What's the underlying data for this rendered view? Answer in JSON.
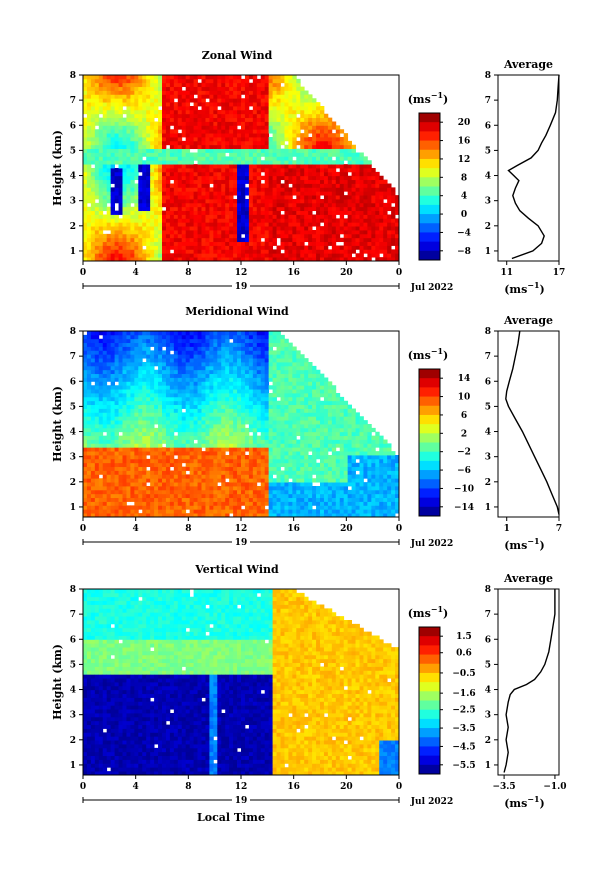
{
  "chart_data": [
    {
      "type": "heatmap",
      "title": "Zonal Wind",
      "ylabel": "Height (km)",
      "xticks": [
        "0",
        "4",
        "8",
        "12",
        "16",
        "20",
        "0"
      ],
      "xlim": [
        0,
        24
      ],
      "ylim": [
        0.6,
        8
      ],
      "yticks": [
        "1",
        "2",
        "3",
        "4",
        "5",
        "6",
        "7",
        "8"
      ],
      "date_label": "19",
      "month_label": "Jul 2022",
      "colorbar": {
        "unit": "(ms",
        "unit_sup": "−1",
        "unit_close": ")",
        "ticks": [
          "20",
          "16",
          "12",
          "8",
          "4",
          "0",
          "−4",
          "−8"
        ],
        "min": -10,
        "max": 22
      },
      "profile": {
        "title": "Average",
        "xticks": [
          "11",
          "17"
        ],
        "xlim": [
          10,
          17
        ],
        "xlabel": "(ms",
        "xlabel_sup": "−1",
        "xlabel_close": ")",
        "heights": [
          0.7,
          1.0,
          1.3,
          1.6,
          2.0,
          2.3,
          2.6,
          2.9,
          3.2,
          3.5,
          3.8,
          4.0,
          4.2,
          4.4,
          4.7,
          5.0,
          5.3,
          5.6,
          6.0,
          6.5,
          7.0,
          7.5,
          8.0
        ],
        "values": [
          11.6,
          14.0,
          15.0,
          15.3,
          14.6,
          13.5,
          12.5,
          12.0,
          11.7,
          12.0,
          12.4,
          11.8,
          11.2,
          12.2,
          13.8,
          14.6,
          15.0,
          15.5,
          16.0,
          16.6,
          16.8,
          16.9,
          17.0
        ]
      }
    },
    {
      "type": "heatmap",
      "title": "Meridional Wind",
      "ylabel": "Height (km)",
      "xticks": [
        "0",
        "4",
        "8",
        "12",
        "16",
        "20",
        "0"
      ],
      "xlim": [
        0,
        24
      ],
      "ylim": [
        0.6,
        8
      ],
      "yticks": [
        "1",
        "2",
        "3",
        "4",
        "5",
        "6",
        "7",
        "8"
      ],
      "date_label": "19",
      "month_label": "Jul 2022",
      "colorbar": {
        "unit": "(ms",
        "unit_sup": "−1",
        "unit_close": ")",
        "ticks": [
          "14",
          "10",
          "6",
          "2",
          "−2",
          "−6",
          "−10",
          "−14"
        ],
        "min": -16,
        "max": 16
      },
      "profile": {
        "title": "Average",
        "xticks": [
          "1",
          "7"
        ],
        "xlim": [
          0,
          7
        ],
        "xlabel": "(ms",
        "xlabel_sup": "−1",
        "xlabel_close": ")",
        "heights": [
          0.7,
          1.0,
          1.5,
          2.0,
          2.5,
          3.0,
          3.5,
          4.0,
          4.5,
          5.0,
          5.3,
          5.6,
          6.0,
          6.5,
          7.0,
          7.5,
          8.0
        ],
        "values": [
          7.0,
          6.8,
          6.2,
          5.6,
          4.9,
          4.2,
          3.5,
          2.8,
          2.0,
          1.2,
          0.9,
          1.0,
          1.3,
          1.7,
          2.0,
          2.3,
          2.5
        ]
      }
    },
    {
      "type": "heatmap",
      "title": "Vertical Wind",
      "ylabel": "Height (km)",
      "xlabel": "Local Time",
      "xticks": [
        "0",
        "4",
        "8",
        "12",
        "16",
        "20",
        "0"
      ],
      "xlim": [
        0,
        24
      ],
      "ylim": [
        0.6,
        8
      ],
      "yticks": [
        "1",
        "2",
        "3",
        "4",
        "5",
        "6",
        "7",
        "8"
      ],
      "date_label": "19",
      "month_label": "Jul 2022",
      "colorbar": {
        "unit": "(ms",
        "unit_sup": "−1",
        "unit_close": ")",
        "ticks": [
          "1.5",
          "0.6",
          "−0.5",
          "−1.6",
          "−2.5",
          "−3.5",
          "−4.5",
          "−5.5"
        ],
        "min": -6,
        "max": 2
      },
      "profile": {
        "title": "Average",
        "xticks": [
          "−3.5",
          "−1.0"
        ],
        "xlim": [
          -3.8,
          -0.8
        ],
        "xlabel": "(ms",
        "xlabel_sup": "−1",
        "xlabel_close": ")",
        "heights": [
          0.7,
          1.0,
          1.5,
          2.0,
          2.5,
          3.0,
          3.5,
          3.8,
          4.0,
          4.2,
          4.4,
          4.7,
          5.0,
          5.5,
          6.0,
          6.5,
          7.0,
          7.5,
          8.0
        ],
        "values": [
          -3.5,
          -3.4,
          -3.3,
          -3.4,
          -3.3,
          -3.4,
          -3.3,
          -3.2,
          -3.0,
          -2.4,
          -2.0,
          -1.7,
          -1.5,
          -1.3,
          -1.2,
          -1.1,
          -1.0,
          -1.0,
          -1.0
        ]
      }
    }
  ]
}
